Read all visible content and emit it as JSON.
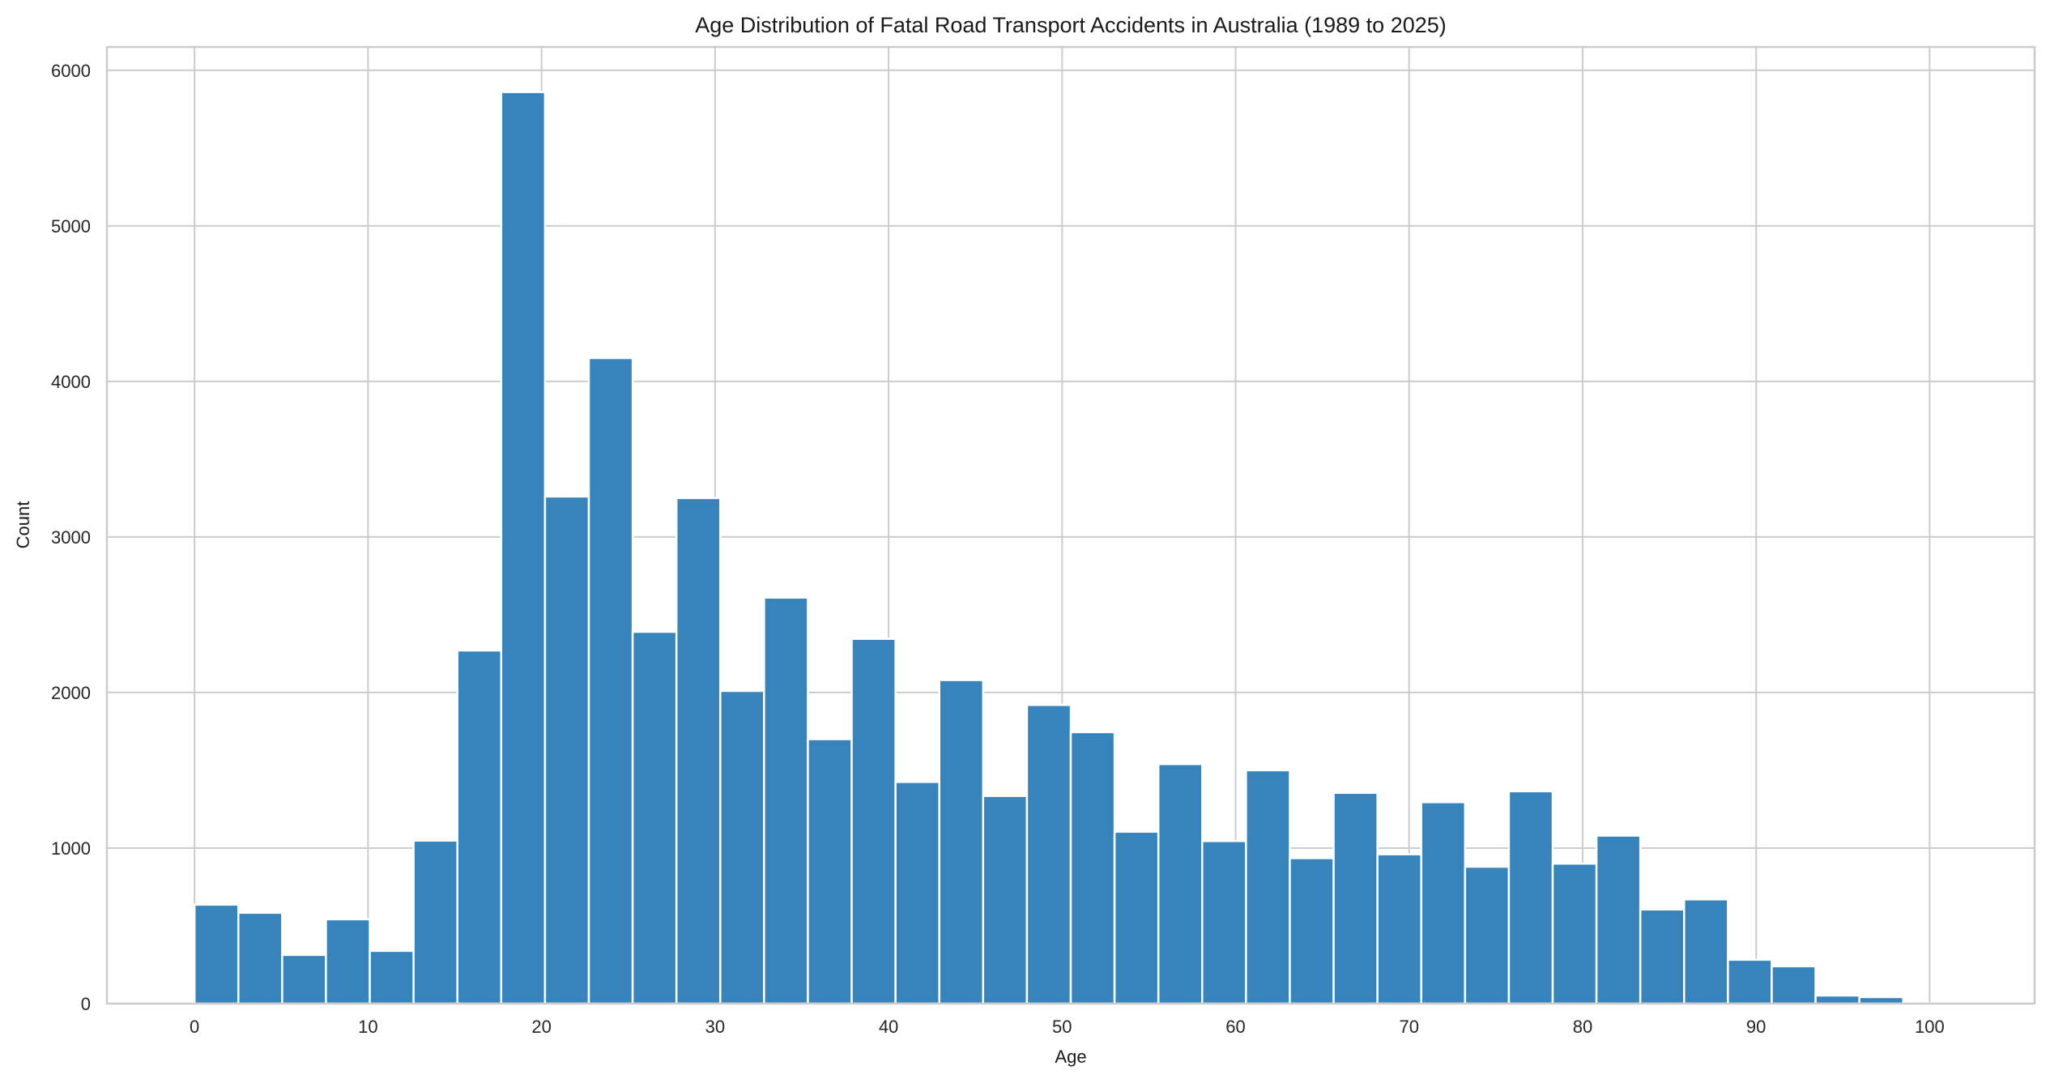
{
  "chart_data": {
    "type": "bar",
    "subtype": "histogram",
    "title": "Age Distribution of Fatal Road Transport Accidents in Australia (1989 to 2025)",
    "xlabel": "Age",
    "ylabel": "Count",
    "xlim": [
      -5.05,
      106.05
    ],
    "ylim": [
      0,
      6150
    ],
    "grid": true,
    "bar_color": "#3784bc",
    "bin_start": 0,
    "bin_width": 2.525,
    "values": [
      636,
      584,
      313,
      542,
      339,
      1048,
      2270,
      5860,
      3260,
      4150,
      2390,
      3250,
      2010,
      2610,
      1700,
      2345,
      1425,
      2080,
      1335,
      1920,
      1745,
      1105,
      1540,
      1045,
      1500,
      935,
      1355,
      960,
      1295,
      880,
      1365,
      900,
      1080,
      605,
      670,
      282,
      240,
      52,
      42,
      2
    ],
    "xticks": [
      "0",
      "10",
      "20",
      "30",
      "40",
      "50",
      "60",
      "70",
      "80",
      "90",
      "100"
    ],
    "yticks": [
      "0",
      "1000",
      "2000",
      "3000",
      "4000",
      "5000",
      "6000"
    ]
  }
}
